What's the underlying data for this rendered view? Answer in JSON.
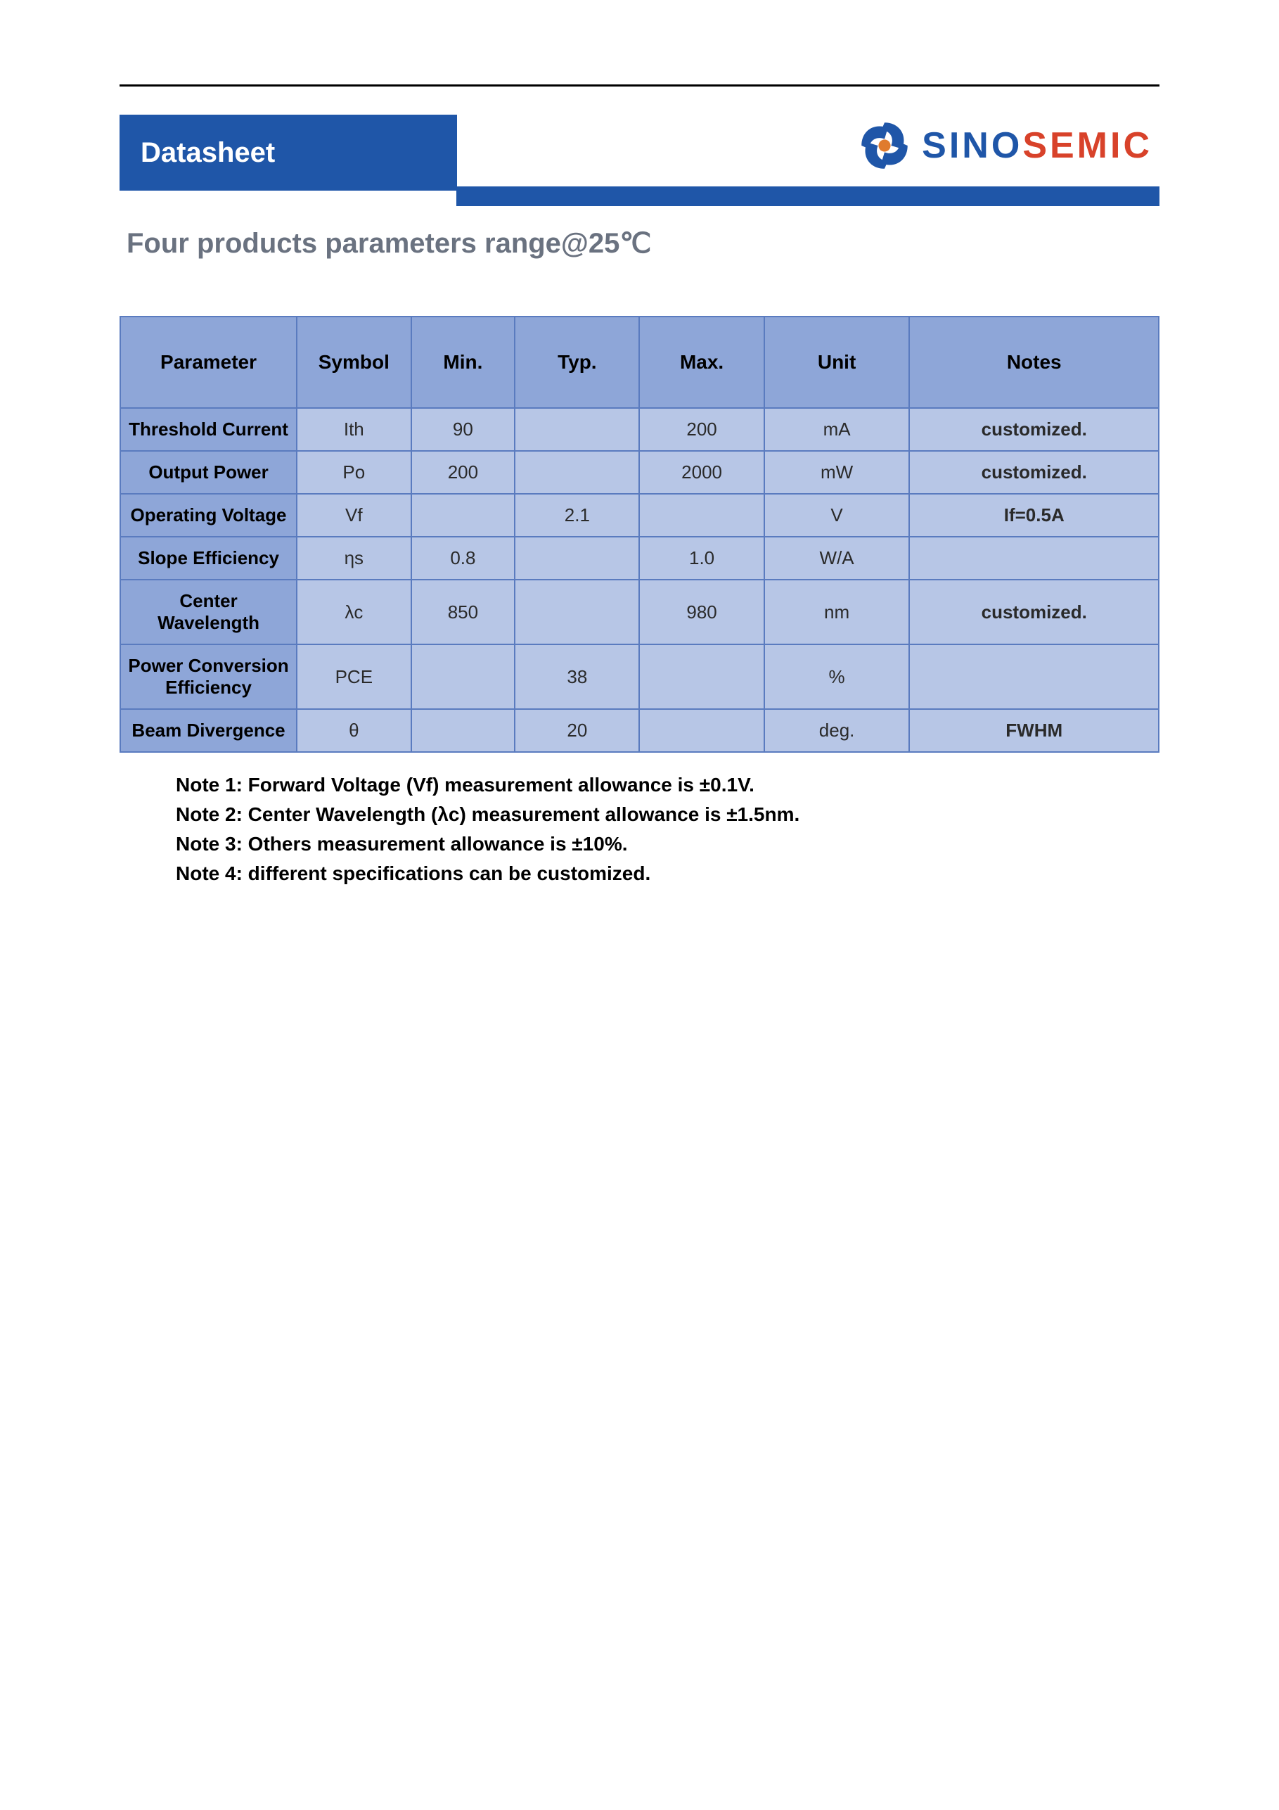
{
  "header": {
    "badge": "Datasheet",
    "logo_text_part1": "SINO",
    "logo_text_part2": "SEMIC"
  },
  "section_title": "Four products parameters range@25℃",
  "colors": {
    "brand_blue": "#1f56a8",
    "brand_red": "#d8422a",
    "table_header_bg": "#8ea6d8",
    "table_cell_bg": "#b7c6e6",
    "table_border": "#5a7bbf",
    "title_gray": "#6a7280",
    "page_bg": "#ffffff"
  },
  "table": {
    "columns": [
      "Parameter",
      "Symbol",
      "Min.",
      "Typ.",
      "Max.",
      "Unit",
      "Notes"
    ],
    "rows": [
      {
        "parameter": "Threshold Current",
        "symbol": "Ith",
        "min": "90",
        "typ": "",
        "max": "200",
        "unit": "mA",
        "notes": "customized."
      },
      {
        "parameter": "Output Power",
        "symbol": "Po",
        "min": "200",
        "typ": "",
        "max": "2000",
        "unit": "mW",
        "notes": "customized."
      },
      {
        "parameter": "Operating Voltage",
        "symbol": "Vf",
        "min": "",
        "typ": "2.1",
        "max": "",
        "unit": "V",
        "notes": "If=0.5A"
      },
      {
        "parameter": "Slope Efficiency",
        "symbol": "ηs",
        "min": "0.8",
        "typ": "",
        "max": "1.0",
        "unit": "W/A",
        "notes": ""
      },
      {
        "parameter": "Center Wavelength",
        "symbol": "λc",
        "min": "850",
        "typ": "",
        "max": "980",
        "unit": "nm",
        "notes": "customized."
      },
      {
        "parameter": "Power Conversion Efficiency",
        "symbol": "PCE",
        "min": "",
        "typ": "38",
        "max": "",
        "unit": "%",
        "notes": ""
      },
      {
        "parameter": "Beam Divergence",
        "symbol": "θ",
        "min": "",
        "typ": "20",
        "max": "",
        "unit": "deg.",
        "notes": "FWHM"
      }
    ]
  },
  "footnotes": [
    "Note 1: Forward Voltage (Vf) measurement allowance is ±0.1V.",
    "Note 2: Center Wavelength (λc) measurement allowance is ±1.5nm.",
    "Note 3: Others measurement allowance is ±10%.",
    "Note 4: different specifications can be customized."
  ]
}
